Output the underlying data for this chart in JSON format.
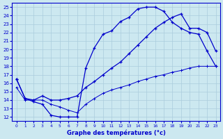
{
  "xlabel": "Graphe des températures (°c)",
  "background_color": "#cce8f0",
  "line_color": "#0000cc",
  "grid_color": "#aaccdd",
  "xlim": [
    -0.5,
    23.5
  ],
  "ylim": [
    11.5,
    25.5
  ],
  "xticks": [
    0,
    1,
    2,
    3,
    4,
    5,
    6,
    7,
    8,
    9,
    10,
    11,
    12,
    13,
    14,
    15,
    16,
    17,
    18,
    19,
    20,
    21,
    22,
    23
  ],
  "yticks": [
    12,
    13,
    14,
    15,
    16,
    17,
    18,
    19,
    20,
    21,
    22,
    23,
    24,
    25
  ],
  "line1_x": [
    0,
    1,
    2,
    3,
    4,
    5,
    6,
    7,
    8,
    9,
    10,
    11,
    12,
    13,
    14,
    15,
    16,
    17,
    18,
    19,
    20,
    21,
    22,
    23
  ],
  "line1_y": [
    16.5,
    14.2,
    13.8,
    13.5,
    12.2,
    12.0,
    12.0,
    12.0,
    17.8,
    20.2,
    21.8,
    22.2,
    23.3,
    23.8,
    24.8,
    25.0,
    25.0,
    24.5,
    23.2,
    22.5,
    22.0,
    21.8,
    19.8,
    18.0
  ],
  "line2_x": [
    0,
    1,
    2,
    3,
    4,
    5,
    6,
    7,
    8,
    9,
    10,
    11,
    12,
    13,
    14,
    15,
    16,
    17,
    18,
    19,
    20,
    21,
    22,
    23
  ],
  "line2_y": [
    16.5,
    14.2,
    14.0,
    14.5,
    14.0,
    14.0,
    14.2,
    14.5,
    15.5,
    16.2,
    17.0,
    17.8,
    18.5,
    19.5,
    20.5,
    21.5,
    22.5,
    23.2,
    23.8,
    24.2,
    22.5,
    22.5,
    22.0,
    19.8
  ],
  "line3_x": [
    0,
    1,
    2,
    3,
    4,
    5,
    6,
    7,
    8,
    9,
    10,
    11,
    12,
    13,
    14,
    15,
    16,
    17,
    18,
    19,
    20,
    21,
    22,
    23
  ],
  "line3_y": [
    15.5,
    14.0,
    14.0,
    14.0,
    13.5,
    13.2,
    12.8,
    12.5,
    13.5,
    14.2,
    14.8,
    15.2,
    15.5,
    15.8,
    16.2,
    16.5,
    16.8,
    17.0,
    17.3,
    17.5,
    17.8,
    18.0,
    18.0,
    18.0
  ]
}
